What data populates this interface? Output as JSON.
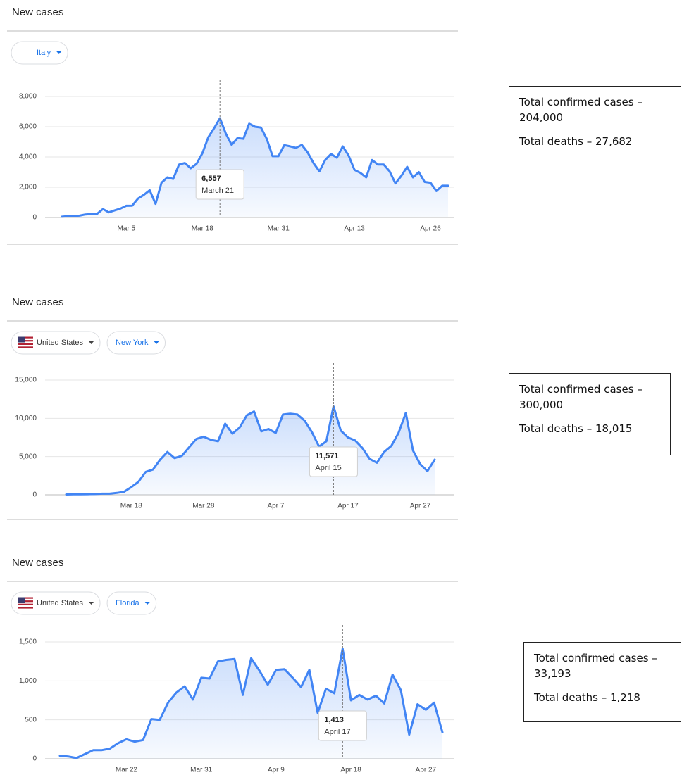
{
  "chart_data": [
    {
      "type": "line",
      "title": "New cases",
      "filters": [
        "Italy"
      ],
      "categories": [
        null,
        null,
        null,
        null,
        null,
        null,
        null,
        null,
        null,
        null,
        null,
        "Mar 5",
        null,
        null,
        null,
        null,
        null,
        null,
        null,
        null,
        null,
        null,
        null,
        null,
        "Mar 18",
        null,
        null,
        null,
        null,
        null,
        null,
        null,
        null,
        null,
        null,
        null,
        null,
        "Mar 31",
        null,
        null,
        null,
        null,
        null,
        null,
        null,
        null,
        null,
        null,
        null,
        null,
        "Apr 13",
        null,
        null,
        null,
        null,
        null,
        null,
        null,
        null,
        null,
        null,
        null,
        null,
        "Apr 26",
        null,
        null,
        null
      ],
      "values": [
        50,
        90,
        100,
        120,
        200,
        230,
        240,
        560,
        340,
        470,
        590,
        770,
        780,
        1250,
        1500,
        1800,
        900,
        2300,
        2650,
        2550,
        3500,
        3600,
        3250,
        3550,
        4250,
        5300,
        5900,
        6557,
        5550,
        4800,
        5250,
        5200,
        6200,
        6000,
        5950,
        5200,
        4050,
        4050,
        4780,
        4700,
        4600,
        4800,
        4300,
        3600,
        3050,
        3800,
        4200,
        3950,
        4700,
        4100,
        3150,
        2950,
        2650,
        3800,
        3500,
        3500,
        3050,
        2250,
        2750,
        3350,
        2650,
        3000,
        2350,
        2300,
        1750,
        2100,
        2100
      ],
      "value_labels": [
        null,
        null,
        null,
        null,
        null,
        null,
        null,
        null,
        null,
        null,
        null,
        null,
        null,
        null,
        null,
        null,
        null,
        null,
        null,
        null,
        null,
        null,
        null,
        null,
        null,
        null,
        null,
        "6,557",
        null,
        null,
        null,
        null,
        null,
        null,
        null,
        null,
        null,
        null,
        null,
        null,
        null,
        null,
        null,
        null,
        null,
        null,
        null,
        null,
        null,
        null,
        null,
        null,
        null,
        null,
        null,
        null,
        null,
        null,
        null,
        null,
        null,
        null,
        null,
        null,
        null,
        null,
        null
      ],
      "annotation": "March 21",
      "color": "#4285f4",
      "ylim": [
        0,
        8000
      ],
      "yticks": [
        0,
        {
          "value": 2000,
          "label": "2,000"
        },
        {
          "value": 4000,
          "label": "4,000"
        },
        {
          "value": 6000,
          "label": "6,000"
        },
        {
          "value": 8000,
          "label": "8,000"
        }
      ],
      "grid": true,
      "summary": [
        "Total confirmed cases – 204,000",
        "Total deaths – 27,682"
      ]
    },
    {
      "type": "line",
      "title": "New cases",
      "filters": [
        "United States",
        "New York"
      ],
      "categories": [
        null,
        null,
        null,
        null,
        null,
        null,
        null,
        null,
        null,
        "Mar 18",
        null,
        null,
        null,
        null,
        null,
        null,
        null,
        null,
        null,
        "Mar 28",
        null,
        null,
        null,
        null,
        null,
        null,
        null,
        null,
        null,
        "Apr 7",
        null,
        null,
        null,
        null,
        null,
        null,
        null,
        null,
        null,
        "Apr 17",
        null,
        null,
        null,
        null,
        null,
        null,
        null,
        null,
        null,
        "Apr 27",
        null,
        null
      ],
      "values": [
        50,
        60,
        60,
        80,
        100,
        150,
        150,
        250,
        400,
        1000,
        1700,
        3000,
        3300,
        4600,
        5600,
        4800,
        5100,
        6200,
        7300,
        7600,
        7200,
        7000,
        9300,
        8000,
        8800,
        10400,
        10900,
        8300,
        8600,
        8100,
        10500,
        10600,
        10500,
        9700,
        8200,
        6300,
        7000,
        11571,
        8400,
        7500,
        7100,
        6100,
        4700,
        4200,
        5600,
        6400,
        8100,
        10700,
        5800,
        4000,
        3100,
        4600
      ],
      "value_labels": [
        null,
        null,
        null,
        null,
        null,
        null,
        null,
        null,
        null,
        null,
        null,
        null,
        null,
        null,
        null,
        null,
        null,
        null,
        null,
        null,
        null,
        null,
        null,
        null,
        null,
        null,
        null,
        null,
        null,
        null,
        null,
        null,
        null,
        null,
        null,
        null,
        null,
        "11,571",
        null,
        null,
        null,
        null,
        null,
        null,
        null,
        null,
        null,
        null,
        null,
        null,
        null,
        null
      ],
      "annotation": "April 15",
      "color": "#4285f4",
      "ylim": [
        0,
        15000
      ],
      "yticks": [
        0,
        {
          "value": 5000,
          "label": "5,000"
        },
        {
          "value": 10000,
          "label": "10,000"
        },
        {
          "value": 15000,
          "label": "15,000"
        }
      ],
      "grid": true,
      "summary": [
        "Total confirmed cases – 300,000",
        "Total deaths – 18,015"
      ]
    },
    {
      "type": "line",
      "title": "New cases",
      "filters": [
        "United States",
        "Florida"
      ],
      "categories": [
        null,
        null,
        null,
        null,
        null,
        null,
        null,
        null,
        "Mar 22",
        null,
        null,
        null,
        null,
        null,
        null,
        null,
        null,
        "Mar 31",
        null,
        null,
        null,
        null,
        null,
        null,
        null,
        null,
        "Apr 9",
        null,
        null,
        null,
        null,
        null,
        null,
        null,
        null,
        "Apr 18",
        null,
        null,
        null,
        null,
        null,
        null,
        null,
        null,
        "Apr 27",
        null,
        null
      ],
      "values": [
        40,
        30,
        10,
        60,
        110,
        110,
        130,
        200,
        250,
        220,
        240,
        510,
        500,
        720,
        850,
        930,
        760,
        1040,
        1030,
        1250,
        1270,
        1280,
        820,
        1290,
        1130,
        950,
        1140,
        1150,
        1040,
        920,
        1140,
        590,
        900,
        840,
        1413,
        750,
        820,
        760,
        810,
        710,
        1080,
        880,
        310,
        700,
        630,
        720,
        340
      ],
      "value_labels": [
        null,
        null,
        null,
        null,
        null,
        null,
        null,
        null,
        null,
        null,
        null,
        null,
        null,
        null,
        null,
        null,
        null,
        null,
        null,
        null,
        null,
        null,
        null,
        null,
        null,
        null,
        null,
        null,
        null,
        null,
        null,
        null,
        null,
        null,
        "1,413",
        null,
        null,
        null,
        null,
        null,
        null,
        null,
        null,
        null,
        null,
        null,
        null
      ],
      "annotation": "April 17",
      "color": "#4285f4",
      "ylim": [
        0,
        1500
      ],
      "yticks": [
        0,
        500,
        {
          "value": 1000,
          "label": "1,000"
        },
        {
          "value": 1500,
          "label": "1,500"
        }
      ],
      "grid": true,
      "summary": [
        "Total confirmed cases – 33,193",
        "Total deaths – 1,218"
      ]
    }
  ]
}
